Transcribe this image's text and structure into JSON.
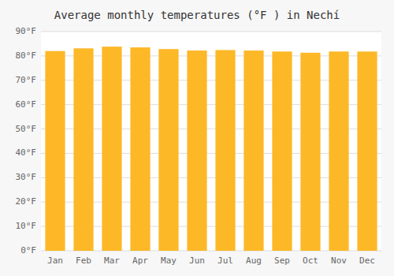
{
  "chart_data": {
    "type": "bar",
    "title": "Average monthly temperatures (°F ) in Nechí",
    "categories": [
      "Jan",
      "Feb",
      "Mar",
      "Apr",
      "May",
      "Jun",
      "Jul",
      "Aug",
      "Sep",
      "Oct",
      "Nov",
      "Dec"
    ],
    "values": [
      82.0,
      83.1,
      83.8,
      83.5,
      82.8,
      82.2,
      82.4,
      82.2,
      81.8,
      81.3,
      81.8,
      81.8
    ],
    "color": "#FDB827",
    "ylim": [
      0,
      90
    ],
    "yticks": [
      {
        "value": 0,
        "label": "0°F"
      },
      {
        "value": 10,
        "label": "10°F"
      },
      {
        "value": 20,
        "label": "20°F"
      },
      {
        "value": 30,
        "label": "30°F"
      },
      {
        "value": 40,
        "label": "40°F"
      },
      {
        "value": 50,
        "label": "50°F"
      },
      {
        "value": 60,
        "label": "60°F"
      },
      {
        "value": 70,
        "label": "70°F"
      },
      {
        "value": 80,
        "label": "80°F"
      },
      {
        "value": 90,
        "label": "90°F"
      }
    ],
    "grid": true
  }
}
